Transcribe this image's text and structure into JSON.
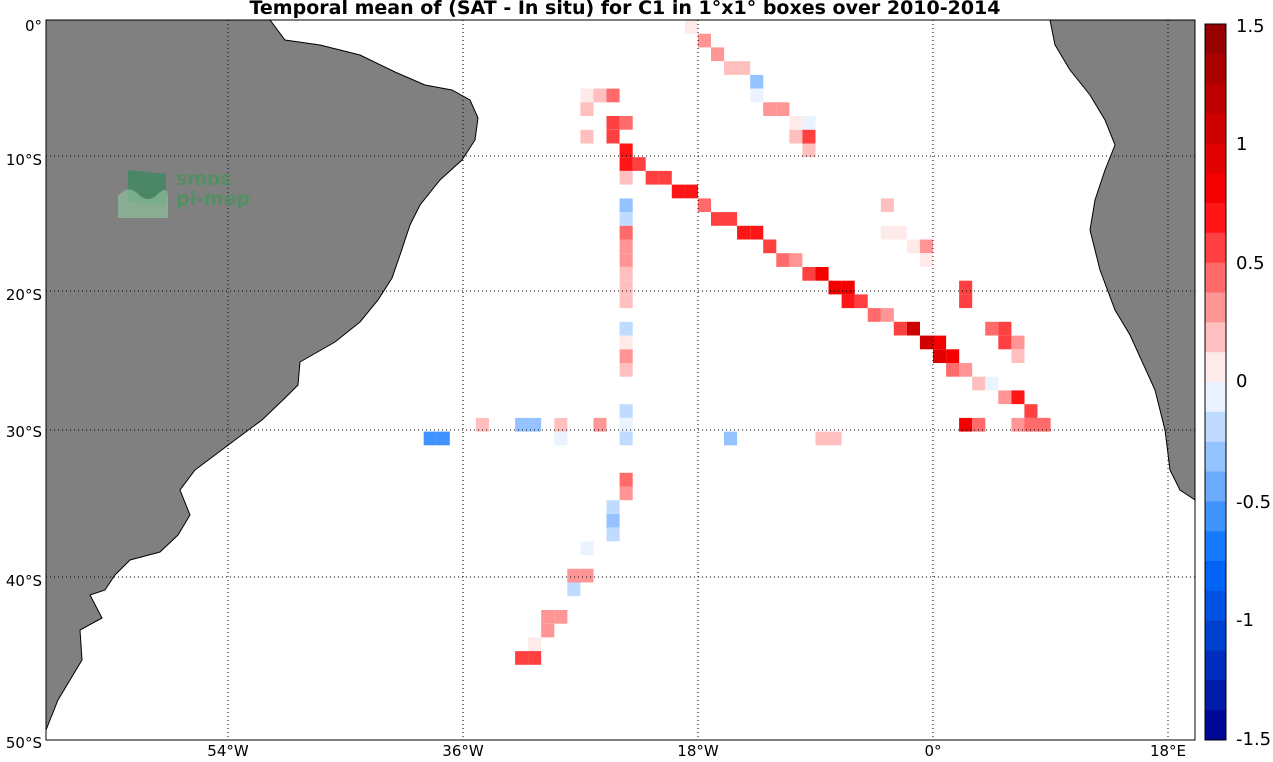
{
  "title": "Temporal mean of (SAT - In situ) for C1 in 1°x1° boxes over 2010-2014",
  "logo": {
    "line1": "smos",
    "line2": "pi-mep"
  },
  "axes": {
    "lat_labels": [
      "0°",
      "10°S",
      "20°S",
      "30°S",
      "40°S",
      "50°S"
    ],
    "lon_labels": [
      "54°W",
      "36°W",
      "18°W",
      "0°",
      "18°E"
    ],
    "lat_range": [
      -50,
      0
    ],
    "lon_range": [
      -68,
      20
    ],
    "grid": "dotted at 10° lat / 18° lon"
  },
  "colorbar": {
    "range": [
      -1.5,
      1.5
    ],
    "tick_labels": [
      "1.5",
      "1",
      "0.5",
      "0",
      "-0.5",
      "-1",
      "-1.5"
    ],
    "colormap": "blue-white-red diverging, 24 steps"
  },
  "chart_data": {
    "type": "heatmap",
    "units": "SAT - In situ mean per 1°x1° box",
    "cells": [
      [
        -19,
        0,
        0.1
      ],
      [
        -18,
        1,
        0.3
      ],
      [
        -17,
        2,
        0.3
      ],
      [
        -16,
        3,
        0.2
      ],
      [
        -15,
        3,
        0.2
      ],
      [
        -14,
        4,
        -0.3
      ],
      [
        -14,
        5,
        -0.1
      ],
      [
        -13,
        6,
        0.3
      ],
      [
        -12,
        6,
        0.3
      ],
      [
        -11,
        7,
        0.1
      ],
      [
        -10,
        7,
        -0.1
      ],
      [
        -11,
        8,
        0.2
      ],
      [
        -10,
        8,
        0.6
      ],
      [
        -10,
        9,
        0.2
      ],
      [
        -27,
        5,
        0.1
      ],
      [
        -26,
        5,
        0.15
      ],
      [
        -25,
        5,
        0.4
      ],
      [
        -27,
        6,
        0.15
      ],
      [
        -25,
        7,
        0.5
      ],
      [
        -24,
        7,
        0.4
      ],
      [
        -27,
        8,
        0.2
      ],
      [
        -25,
        8,
        0.6
      ],
      [
        -24,
        9,
        0.7
      ],
      [
        -24,
        10,
        0.7
      ],
      [
        -23,
        10,
        0.6
      ],
      [
        -22,
        11,
        0.6
      ],
      [
        -21,
        11,
        0.6
      ],
      [
        -20,
        12,
        0.7
      ],
      [
        -19,
        12,
        0.7
      ],
      [
        -18,
        13,
        0.4
      ],
      [
        -17,
        14,
        0.6
      ],
      [
        -16,
        14,
        0.6
      ],
      [
        -15,
        15,
        0.7
      ],
      [
        -14,
        15,
        0.7
      ],
      [
        -13,
        16,
        0.6
      ],
      [
        -12,
        17,
        0.4
      ],
      [
        -11,
        17,
        0.3
      ],
      [
        -10,
        18,
        0.6
      ],
      [
        -9,
        18,
        0.8
      ],
      [
        -8,
        19,
        0.8
      ],
      [
        -7,
        19,
        0.8
      ],
      [
        -7,
        20,
        0.7
      ],
      [
        -6,
        20,
        0.6
      ],
      [
        -5,
        21,
        0.4
      ],
      [
        -4,
        21,
        0.3
      ],
      [
        -3,
        22,
        0.5
      ],
      [
        -2,
        22,
        1.0
      ],
      [
        -1,
        23,
        1.0
      ],
      [
        0,
        23,
        0.8
      ],
      [
        0,
        24,
        0.9
      ],
      [
        1,
        24,
        0.8
      ],
      [
        1,
        25,
        0.4
      ],
      [
        2,
        25,
        0.3
      ],
      [
        3,
        26,
        0.2
      ],
      [
        4,
        26,
        -0.1
      ],
      [
        5,
        27,
        0.3
      ],
      [
        6,
        27,
        0.7
      ],
      [
        7,
        28,
        0.6
      ],
      [
        -4,
        13,
        0.15
      ],
      [
        -4,
        15,
        0.1
      ],
      [
        -3,
        15,
        0.1
      ],
      [
        -2,
        16,
        0.1
      ],
      [
        -1,
        16,
        0.3
      ],
      [
        -1,
        17,
        0.1
      ],
      [
        2,
        19,
        0.5
      ],
      [
        2,
        20,
        0.5
      ],
      [
        4,
        22,
        0.4
      ],
      [
        5,
        22,
        0.6
      ],
      [
        5,
        23,
        0.6
      ],
      [
        6,
        23,
        0.3
      ],
      [
        6,
        24,
        0.15
      ],
      [
        -24,
        11,
        0.15
      ],
      [
        -24,
        13,
        -0.3
      ],
      [
        -24,
        14,
        -0.2
      ],
      [
        -24,
        15,
        0.4
      ],
      [
        -24,
        16,
        0.3
      ],
      [
        -24,
        17,
        0.3
      ],
      [
        -24,
        18,
        0.2
      ],
      [
        -24,
        19,
        0.2
      ],
      [
        -24,
        20,
        0.2
      ],
      [
        -24,
        22,
        -0.2
      ],
      [
        -24,
        23,
        0.1
      ],
      [
        -24,
        24,
        0.35
      ],
      [
        -24,
        25,
        0.2
      ],
      [
        -24,
        28,
        -0.2
      ],
      [
        -24,
        29,
        -0.1
      ],
      [
        -24,
        30,
        -0.2
      ],
      [
        -24,
        33,
        0.4
      ],
      [
        -24,
        34,
        0.3
      ],
      [
        -25,
        35,
        -0.15
      ],
      [
        -25,
        36,
        -0.3
      ],
      [
        -25,
        37,
        -0.2
      ],
      [
        -27,
        38,
        -0.1
      ],
      [
        -28,
        40,
        0.3
      ],
      [
        -27,
        40,
        0.3
      ],
      [
        -28,
        41,
        -0.25
      ],
      [
        -29,
        43,
        0.35
      ],
      [
        -30,
        43,
        0.35
      ],
      [
        -30,
        44,
        0.25
      ],
      [
        -31,
        45,
        0.1
      ],
      [
        -31,
        46,
        0.5
      ],
      [
        -32,
        46,
        0.5
      ],
      [
        -35,
        29,
        0.15
      ],
      [
        -32,
        29,
        -0.3
      ],
      [
        -31,
        29,
        -0.3
      ],
      [
        -29,
        29,
        0.15
      ],
      [
        -26,
        29,
        0.3
      ],
      [
        -29,
        30,
        -0.1
      ],
      [
        -16,
        30,
        -0.3
      ],
      [
        -9,
        30,
        0.15
      ],
      [
        -8,
        30,
        0.15
      ],
      [
        -39,
        30,
        -0.6
      ],
      [
        -38,
        30,
        -0.6
      ],
      [
        2,
        29,
        0.8
      ],
      [
        3,
        29,
        0.4
      ],
      [
        6,
        29,
        0.3
      ],
      [
        7,
        29,
        0.45
      ],
      [
        8,
        29,
        0.45
      ]
    ]
  }
}
